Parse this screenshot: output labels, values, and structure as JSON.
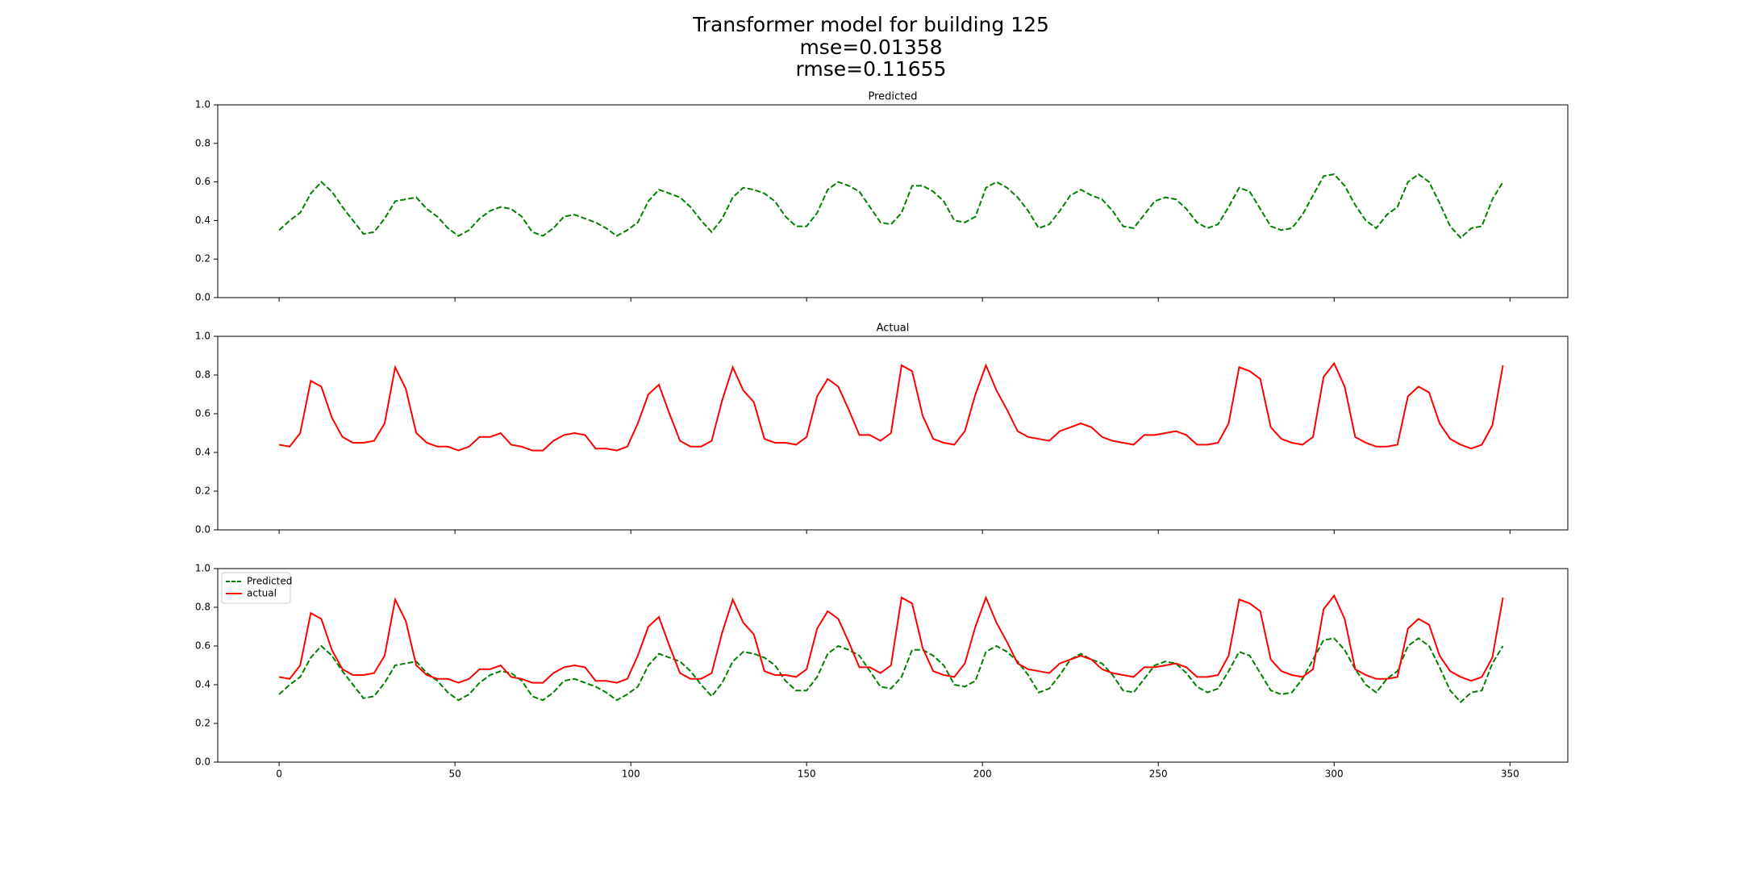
{
  "figure": {
    "title_lines": [
      "Transformer model for building 125",
      "mse=0.01358",
      "rmse=0.11655"
    ]
  },
  "chart_data": [
    {
      "type": "line",
      "title": "Predicted",
      "xtick_labels": false,
      "x": [
        0,
        3,
        6,
        9,
        12,
        15,
        18,
        21,
        24,
        27,
        30,
        33,
        36,
        39,
        42,
        45,
        48,
        51,
        54,
        57,
        60,
        63,
        66,
        69,
        72,
        75,
        78,
        81,
        84,
        87,
        90,
        93,
        96,
        99,
        102,
        105,
        108,
        111,
        114,
        117,
        120,
        123,
        126,
        129,
        132,
        135,
        138,
        141,
        144,
        147,
        150,
        153,
        156,
        159,
        162,
        165,
        168,
        171,
        174,
        177,
        180,
        183,
        186,
        189,
        192,
        195,
        198,
        201,
        204,
        207,
        210,
        213,
        216,
        219,
        222,
        225,
        228,
        231,
        234,
        237,
        240,
        243,
        246,
        249,
        252,
        255,
        258,
        261,
        264,
        267,
        270,
        273,
        276,
        279,
        282,
        285,
        288,
        291,
        294,
        297,
        300,
        303,
        306,
        309,
        312,
        315,
        318,
        321,
        324,
        327,
        330,
        333,
        336,
        339,
        342,
        345,
        348
      ],
      "xlim": [
        -17.45,
        366.45
      ],
      "xticks": [
        0,
        50,
        100,
        150,
        200,
        250,
        300,
        350
      ],
      "ylim": [
        0,
        1
      ],
      "yticks": [
        {
          "value": 0,
          "label": "0.0"
        },
        {
          "value": 0.2,
          "label": "0.2"
        },
        {
          "value": 0.4,
          "label": "0.4"
        },
        {
          "value": 0.6,
          "label": "0.6"
        },
        {
          "value": 0.8,
          "label": "0.8"
        },
        {
          "value": 1,
          "label": "1.0"
        }
      ],
      "series": [
        {
          "color": "#008000",
          "linestyle": "dashed",
          "values": [
            0.35,
            0.4,
            0.44,
            0.54,
            0.6,
            0.55,
            0.47,
            0.4,
            0.33,
            0.34,
            0.41,
            0.5,
            0.51,
            0.52,
            0.46,
            0.42,
            0.36,
            0.32,
            0.35,
            0.41,
            0.45,
            0.47,
            0.46,
            0.42,
            0.34,
            0.32,
            0.36,
            0.42,
            0.43,
            0.41,
            0.39,
            0.36,
            0.32,
            0.35,
            0.39,
            0.5,
            0.56,
            0.54,
            0.52,
            0.47,
            0.4,
            0.34,
            0.41,
            0.52,
            0.57,
            0.56,
            0.54,
            0.5,
            0.42,
            0.37,
            0.37,
            0.44,
            0.56,
            0.6,
            0.58,
            0.55,
            0.47,
            0.39,
            0.38,
            0.44,
            0.58,
            0.58,
            0.55,
            0.5,
            0.4,
            0.39,
            0.42,
            0.57,
            0.6,
            0.57,
            0.52,
            0.45,
            0.36,
            0.38,
            0.45,
            0.53,
            0.56,
            0.53,
            0.51,
            0.45,
            0.37,
            0.36,
            0.43,
            0.5,
            0.52,
            0.51,
            0.46,
            0.39,
            0.36,
            0.38,
            0.47,
            0.57,
            0.55,
            0.46,
            0.37,
            0.35,
            0.36,
            0.43,
            0.53,
            0.63,
            0.64,
            0.58,
            0.48,
            0.4,
            0.36,
            0.43,
            0.47,
            0.6,
            0.64,
            0.6,
            0.49,
            0.37,
            0.31,
            0.36,
            0.37,
            0.51,
            0.6
          ]
        }
      ]
    },
    {
      "type": "line",
      "title": "Actual",
      "xtick_labels": false,
      "x": [
        0,
        3,
        6,
        9,
        12,
        15,
        18,
        21,
        24,
        27,
        30,
        33,
        36,
        39,
        42,
        45,
        48,
        51,
        54,
        57,
        60,
        63,
        66,
        69,
        72,
        75,
        78,
        81,
        84,
        87,
        90,
        93,
        96,
        99,
        102,
        105,
        108,
        111,
        114,
        117,
        120,
        123,
        126,
        129,
        132,
        135,
        138,
        141,
        144,
        147,
        150,
        153,
        156,
        159,
        162,
        165,
        168,
        171,
        174,
        177,
        180,
        183,
        186,
        189,
        192,
        195,
        198,
        201,
        204,
        207,
        210,
        213,
        216,
        219,
        222,
        225,
        228,
        231,
        234,
        237,
        240,
        243,
        246,
        249,
        252,
        255,
        258,
        261,
        264,
        267,
        270,
        273,
        276,
        279,
        282,
        285,
        288,
        291,
        294,
        297,
        300,
        303,
        306,
        309,
        312,
        315,
        318,
        321,
        324,
        327,
        330,
        333,
        336,
        339,
        342,
        345,
        348
      ],
      "xlim": [
        -17.45,
        366.45
      ],
      "xticks": [
        0,
        50,
        100,
        150,
        200,
        250,
        300,
        350
      ],
      "ylim": [
        0,
        1
      ],
      "yticks": [
        {
          "value": 0,
          "label": "0.0"
        },
        {
          "value": 0.2,
          "label": "0.2"
        },
        {
          "value": 0.4,
          "label": "0.4"
        },
        {
          "value": 0.6,
          "label": "0.6"
        },
        {
          "value": 0.8,
          "label": "0.8"
        },
        {
          "value": 1,
          "label": "1.0"
        }
      ],
      "series": [
        {
          "color": "#ff0000",
          "linestyle": "solid",
          "values": [
            0.44,
            0.43,
            0.5,
            0.77,
            0.74,
            0.58,
            0.48,
            0.45,
            0.45,
            0.46,
            0.55,
            0.84,
            0.73,
            0.5,
            0.45,
            0.43,
            0.43,
            0.41,
            0.43,
            0.48,
            0.48,
            0.5,
            0.44,
            0.43,
            0.41,
            0.41,
            0.46,
            0.49,
            0.5,
            0.49,
            0.42,
            0.42,
            0.41,
            0.43,
            0.55,
            0.7,
            0.75,
            0.6,
            0.46,
            0.43,
            0.43,
            0.46,
            0.67,
            0.84,
            0.72,
            0.66,
            0.47,
            0.45,
            0.45,
            0.44,
            0.48,
            0.69,
            0.78,
            0.74,
            0.62,
            0.49,
            0.49,
            0.46,
            0.5,
            0.85,
            0.82,
            0.59,
            0.47,
            0.45,
            0.44,
            0.51,
            0.7,
            0.85,
            0.72,
            0.62,
            0.51,
            0.48,
            0.47,
            0.46,
            0.51,
            0.53,
            0.55,
            0.53,
            0.48,
            0.46,
            0.45,
            0.44,
            0.49,
            0.49,
            0.5,
            0.51,
            0.49,
            0.44,
            0.44,
            0.45,
            0.55,
            0.84,
            0.82,
            0.78,
            0.53,
            0.47,
            0.45,
            0.44,
            0.48,
            0.79,
            0.86,
            0.74,
            0.48,
            0.45,
            0.43,
            0.43,
            0.44,
            0.69,
            0.74,
            0.71,
            0.55,
            0.47,
            0.44,
            0.42,
            0.44,
            0.54,
            0.85
          ]
        }
      ]
    },
    {
      "type": "line",
      "xtick_labels": true,
      "legend": "upper left",
      "x": [
        0,
        3,
        6,
        9,
        12,
        15,
        18,
        21,
        24,
        27,
        30,
        33,
        36,
        39,
        42,
        45,
        48,
        51,
        54,
        57,
        60,
        63,
        66,
        69,
        72,
        75,
        78,
        81,
        84,
        87,
        90,
        93,
        96,
        99,
        102,
        105,
        108,
        111,
        114,
        117,
        120,
        123,
        126,
        129,
        132,
        135,
        138,
        141,
        144,
        147,
        150,
        153,
        156,
        159,
        162,
        165,
        168,
        171,
        174,
        177,
        180,
        183,
        186,
        189,
        192,
        195,
        198,
        201,
        204,
        207,
        210,
        213,
        216,
        219,
        222,
        225,
        228,
        231,
        234,
        237,
        240,
        243,
        246,
        249,
        252,
        255,
        258,
        261,
        264,
        267,
        270,
        273,
        276,
        279,
        282,
        285,
        288,
        291,
        294,
        297,
        300,
        303,
        306,
        309,
        312,
        315,
        318,
        321,
        324,
        327,
        330,
        333,
        336,
        339,
        342,
        345,
        348
      ],
      "xlim": [
        -17.45,
        366.45
      ],
      "xticks": [
        0,
        50,
        100,
        150,
        200,
        250,
        300,
        350
      ],
      "ylim": [
        0,
        1
      ],
      "yticks": [
        {
          "value": 0,
          "label": "0.0"
        },
        {
          "value": 0.2,
          "label": "0.2"
        },
        {
          "value": 0.4,
          "label": "0.4"
        },
        {
          "value": 0.6,
          "label": "0.6"
        },
        {
          "value": 0.8,
          "label": "0.8"
        },
        {
          "value": 1,
          "label": "1.0"
        }
      ],
      "series": [
        {
          "name": "Predicted",
          "color": "#008000",
          "linestyle": "dashed",
          "values": [
            0.35,
            0.4,
            0.44,
            0.54,
            0.6,
            0.55,
            0.47,
            0.4,
            0.33,
            0.34,
            0.41,
            0.5,
            0.51,
            0.52,
            0.46,
            0.42,
            0.36,
            0.32,
            0.35,
            0.41,
            0.45,
            0.47,
            0.46,
            0.42,
            0.34,
            0.32,
            0.36,
            0.42,
            0.43,
            0.41,
            0.39,
            0.36,
            0.32,
            0.35,
            0.39,
            0.5,
            0.56,
            0.54,
            0.52,
            0.47,
            0.4,
            0.34,
            0.41,
            0.52,
            0.57,
            0.56,
            0.54,
            0.5,
            0.42,
            0.37,
            0.37,
            0.44,
            0.56,
            0.6,
            0.58,
            0.55,
            0.47,
            0.39,
            0.38,
            0.44,
            0.58,
            0.58,
            0.55,
            0.5,
            0.4,
            0.39,
            0.42,
            0.57,
            0.6,
            0.57,
            0.52,
            0.45,
            0.36,
            0.38,
            0.45,
            0.53,
            0.56,
            0.53,
            0.51,
            0.45,
            0.37,
            0.36,
            0.43,
            0.5,
            0.52,
            0.51,
            0.46,
            0.39,
            0.36,
            0.38,
            0.47,
            0.57,
            0.55,
            0.46,
            0.37,
            0.35,
            0.36,
            0.43,
            0.53,
            0.63,
            0.64,
            0.58,
            0.48,
            0.4,
            0.36,
            0.43,
            0.47,
            0.6,
            0.64,
            0.6,
            0.49,
            0.37,
            0.31,
            0.36,
            0.37,
            0.51,
            0.6
          ]
        },
        {
          "name": "actual",
          "color": "#ff0000",
          "linestyle": "solid",
          "values": [
            0.44,
            0.43,
            0.5,
            0.77,
            0.74,
            0.58,
            0.48,
            0.45,
            0.45,
            0.46,
            0.55,
            0.84,
            0.73,
            0.5,
            0.45,
            0.43,
            0.43,
            0.41,
            0.43,
            0.48,
            0.48,
            0.5,
            0.44,
            0.43,
            0.41,
            0.41,
            0.46,
            0.49,
            0.5,
            0.49,
            0.42,
            0.42,
            0.41,
            0.43,
            0.55,
            0.7,
            0.75,
            0.6,
            0.46,
            0.43,
            0.43,
            0.46,
            0.67,
            0.84,
            0.72,
            0.66,
            0.47,
            0.45,
            0.45,
            0.44,
            0.48,
            0.69,
            0.78,
            0.74,
            0.62,
            0.49,
            0.49,
            0.46,
            0.5,
            0.85,
            0.82,
            0.59,
            0.47,
            0.45,
            0.44,
            0.51,
            0.7,
            0.85,
            0.72,
            0.62,
            0.51,
            0.48,
            0.47,
            0.46,
            0.51,
            0.53,
            0.55,
            0.53,
            0.48,
            0.46,
            0.45,
            0.44,
            0.49,
            0.49,
            0.5,
            0.51,
            0.49,
            0.44,
            0.44,
            0.45,
            0.55,
            0.84,
            0.82,
            0.78,
            0.53,
            0.47,
            0.45,
            0.44,
            0.48,
            0.79,
            0.86,
            0.74,
            0.48,
            0.45,
            0.43,
            0.43,
            0.44,
            0.69,
            0.74,
            0.71,
            0.55,
            0.47,
            0.44,
            0.42,
            0.44,
            0.54,
            0.85
          ]
        }
      ]
    }
  ]
}
